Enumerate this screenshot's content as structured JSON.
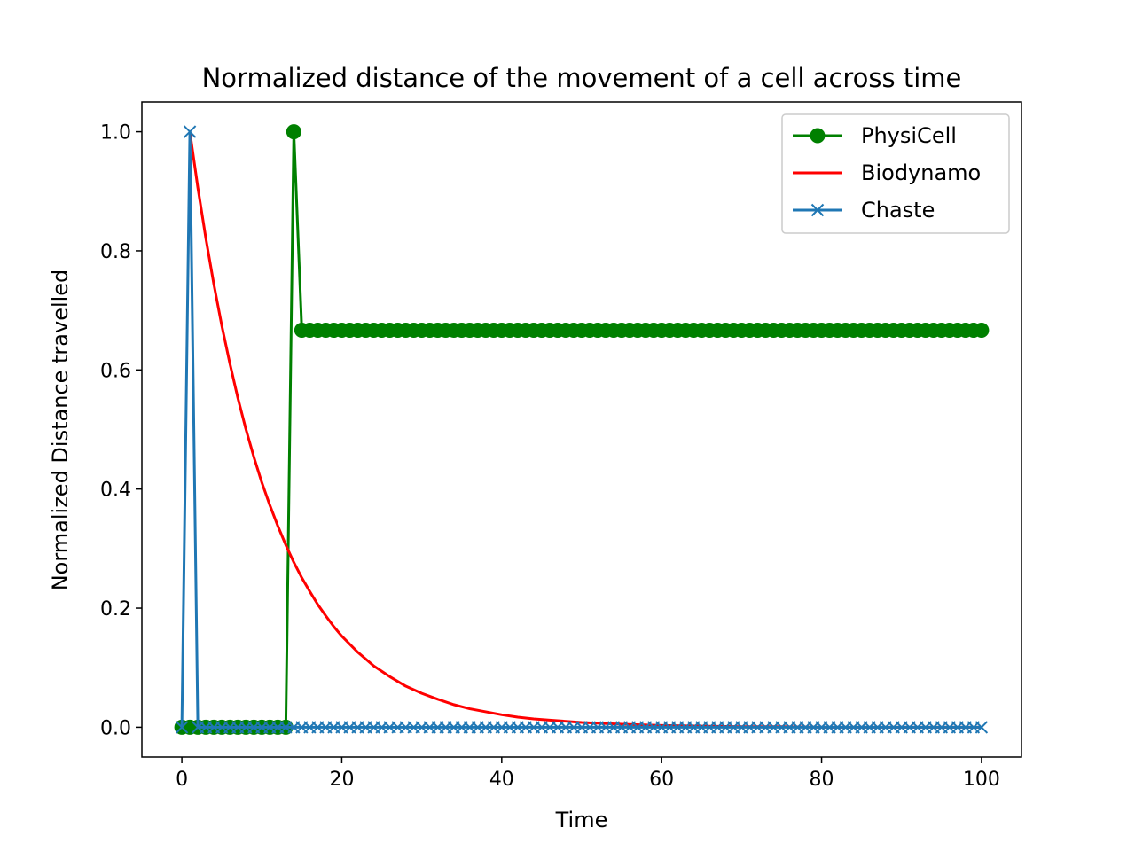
{
  "chart_data": {
    "type": "line",
    "title": "Normalized distance of the movement of a cell across time",
    "xlabel": "Time",
    "ylabel": "Normalized Distance travelled",
    "xlim": [
      -5,
      105
    ],
    "ylim": [
      -0.05,
      1.05
    ],
    "xticks": [
      0,
      20,
      40,
      60,
      80,
      100
    ],
    "yticks": [
      0.0,
      0.2,
      0.4,
      0.6,
      0.8,
      1.0
    ],
    "grid": false,
    "legend_position": "top-right",
    "series": [
      {
        "name": "PhysiCell",
        "color": "#008000",
        "marker": "circle",
        "description": "0.0 for t = 0..13, 1.0 at t = 14, 0.6667 for t = 15..100",
        "x": [
          0,
          1,
          2,
          3,
          4,
          5,
          6,
          7,
          8,
          9,
          10,
          11,
          12,
          13,
          14,
          15,
          16,
          17,
          18,
          19,
          20,
          21,
          22,
          23,
          24,
          25,
          26,
          27,
          28,
          29,
          30,
          31,
          32,
          33,
          34,
          35,
          36,
          37,
          38,
          39,
          40,
          41,
          42,
          43,
          44,
          45,
          46,
          47,
          48,
          49,
          50,
          51,
          52,
          53,
          54,
          55,
          56,
          57,
          58,
          59,
          60,
          61,
          62,
          63,
          64,
          65,
          66,
          67,
          68,
          69,
          70,
          71,
          72,
          73,
          74,
          75,
          76,
          77,
          78,
          79,
          80,
          81,
          82,
          83,
          84,
          85,
          86,
          87,
          88,
          89,
          90,
          91,
          92,
          93,
          94,
          95,
          96,
          97,
          98,
          99,
          100
        ],
        "y": [
          0,
          0,
          0,
          0,
          0,
          0,
          0,
          0,
          0,
          0,
          0,
          0,
          0,
          0,
          1.0,
          0.6667,
          0.6667,
          0.6667,
          0.6667,
          0.6667,
          0.6667,
          0.6667,
          0.6667,
          0.6667,
          0.6667,
          0.6667,
          0.6667,
          0.6667,
          0.6667,
          0.6667,
          0.6667,
          0.6667,
          0.6667,
          0.6667,
          0.6667,
          0.6667,
          0.6667,
          0.6667,
          0.6667,
          0.6667,
          0.6667,
          0.6667,
          0.6667,
          0.6667,
          0.6667,
          0.6667,
          0.6667,
          0.6667,
          0.6667,
          0.6667,
          0.6667,
          0.6667,
          0.6667,
          0.6667,
          0.6667,
          0.6667,
          0.6667,
          0.6667,
          0.6667,
          0.6667,
          0.6667,
          0.6667,
          0.6667,
          0.6667,
          0.6667,
          0.6667,
          0.6667,
          0.6667,
          0.6667,
          0.6667,
          0.6667,
          0.6667,
          0.6667,
          0.6667,
          0.6667,
          0.6667,
          0.6667,
          0.6667,
          0.6667,
          0.6667,
          0.6667,
          0.6667,
          0.6667,
          0.6667,
          0.6667,
          0.6667,
          0.6667,
          0.6667,
          0.6667,
          0.6667,
          0.6667,
          0.6667,
          0.6667,
          0.6667,
          0.6667,
          0.6667,
          0.6667,
          0.6667,
          0.6667,
          0.6667,
          0.6667
        ]
      },
      {
        "name": "Biodynamo",
        "color": "#ff0000",
        "marker": "none",
        "x": [
          1,
          2,
          3,
          4,
          5,
          6,
          7,
          8,
          9,
          10,
          11,
          12,
          13,
          14,
          15,
          16,
          17,
          18,
          19,
          20,
          22,
          24,
          26,
          28,
          30,
          32,
          34,
          36,
          38,
          40,
          42,
          44,
          46,
          48,
          50,
          55,
          60,
          65,
          70,
          75,
          80,
          85,
          90,
          95,
          100
        ],
        "y": [
          1.0,
          0.906,
          0.821,
          0.744,
          0.674,
          0.611,
          0.553,
          0.501,
          0.454,
          0.411,
          0.373,
          0.338,
          0.306,
          0.277,
          0.251,
          0.228,
          0.206,
          0.187,
          0.169,
          0.153,
          0.126,
          0.103,
          0.085,
          0.069,
          0.057,
          0.047,
          0.038,
          0.031,
          0.026,
          0.021,
          0.017,
          0.014,
          0.012,
          0.01,
          0.008,
          0.005,
          0.003,
          0.002,
          0.001,
          0.001,
          0.0,
          0.0,
          0.0,
          0.0,
          0.0
        ]
      },
      {
        "name": "Chaste",
        "color": "#1f77b4",
        "marker": "x",
        "description": "0.0 at t = 0, 1.0 at t = 1, 0.0 for t = 2..100",
        "x": [
          0,
          1,
          2,
          3,
          4,
          5,
          6,
          7,
          8,
          9,
          10,
          11,
          12,
          13,
          14,
          15,
          16,
          17,
          18,
          19,
          20,
          21,
          22,
          23,
          24,
          25,
          26,
          27,
          28,
          29,
          30,
          31,
          32,
          33,
          34,
          35,
          36,
          37,
          38,
          39,
          40,
          41,
          42,
          43,
          44,
          45,
          46,
          47,
          48,
          49,
          50,
          51,
          52,
          53,
          54,
          55,
          56,
          57,
          58,
          59,
          60,
          61,
          62,
          63,
          64,
          65,
          66,
          67,
          68,
          69,
          70,
          71,
          72,
          73,
          74,
          75,
          76,
          77,
          78,
          79,
          80,
          81,
          82,
          83,
          84,
          85,
          86,
          87,
          88,
          89,
          90,
          91,
          92,
          93,
          94,
          95,
          96,
          97,
          98,
          99,
          100
        ],
        "y": [
          0,
          1.0,
          0,
          0,
          0,
          0,
          0,
          0,
          0,
          0,
          0,
          0,
          0,
          0,
          0,
          0,
          0,
          0,
          0,
          0,
          0,
          0,
          0,
          0,
          0,
          0,
          0,
          0,
          0,
          0,
          0,
          0,
          0,
          0,
          0,
          0,
          0,
          0,
          0,
          0,
          0,
          0,
          0,
          0,
          0,
          0,
          0,
          0,
          0,
          0,
          0,
          0,
          0,
          0,
          0,
          0,
          0,
          0,
          0,
          0,
          0,
          0,
          0,
          0,
          0,
          0,
          0,
          0,
          0,
          0,
          0,
          0,
          0,
          0,
          0,
          0,
          0,
          0,
          0,
          0,
          0,
          0,
          0,
          0,
          0,
          0,
          0,
          0,
          0,
          0,
          0,
          0,
          0,
          0,
          0,
          0,
          0,
          0,
          0,
          0,
          0
        ]
      }
    ]
  }
}
